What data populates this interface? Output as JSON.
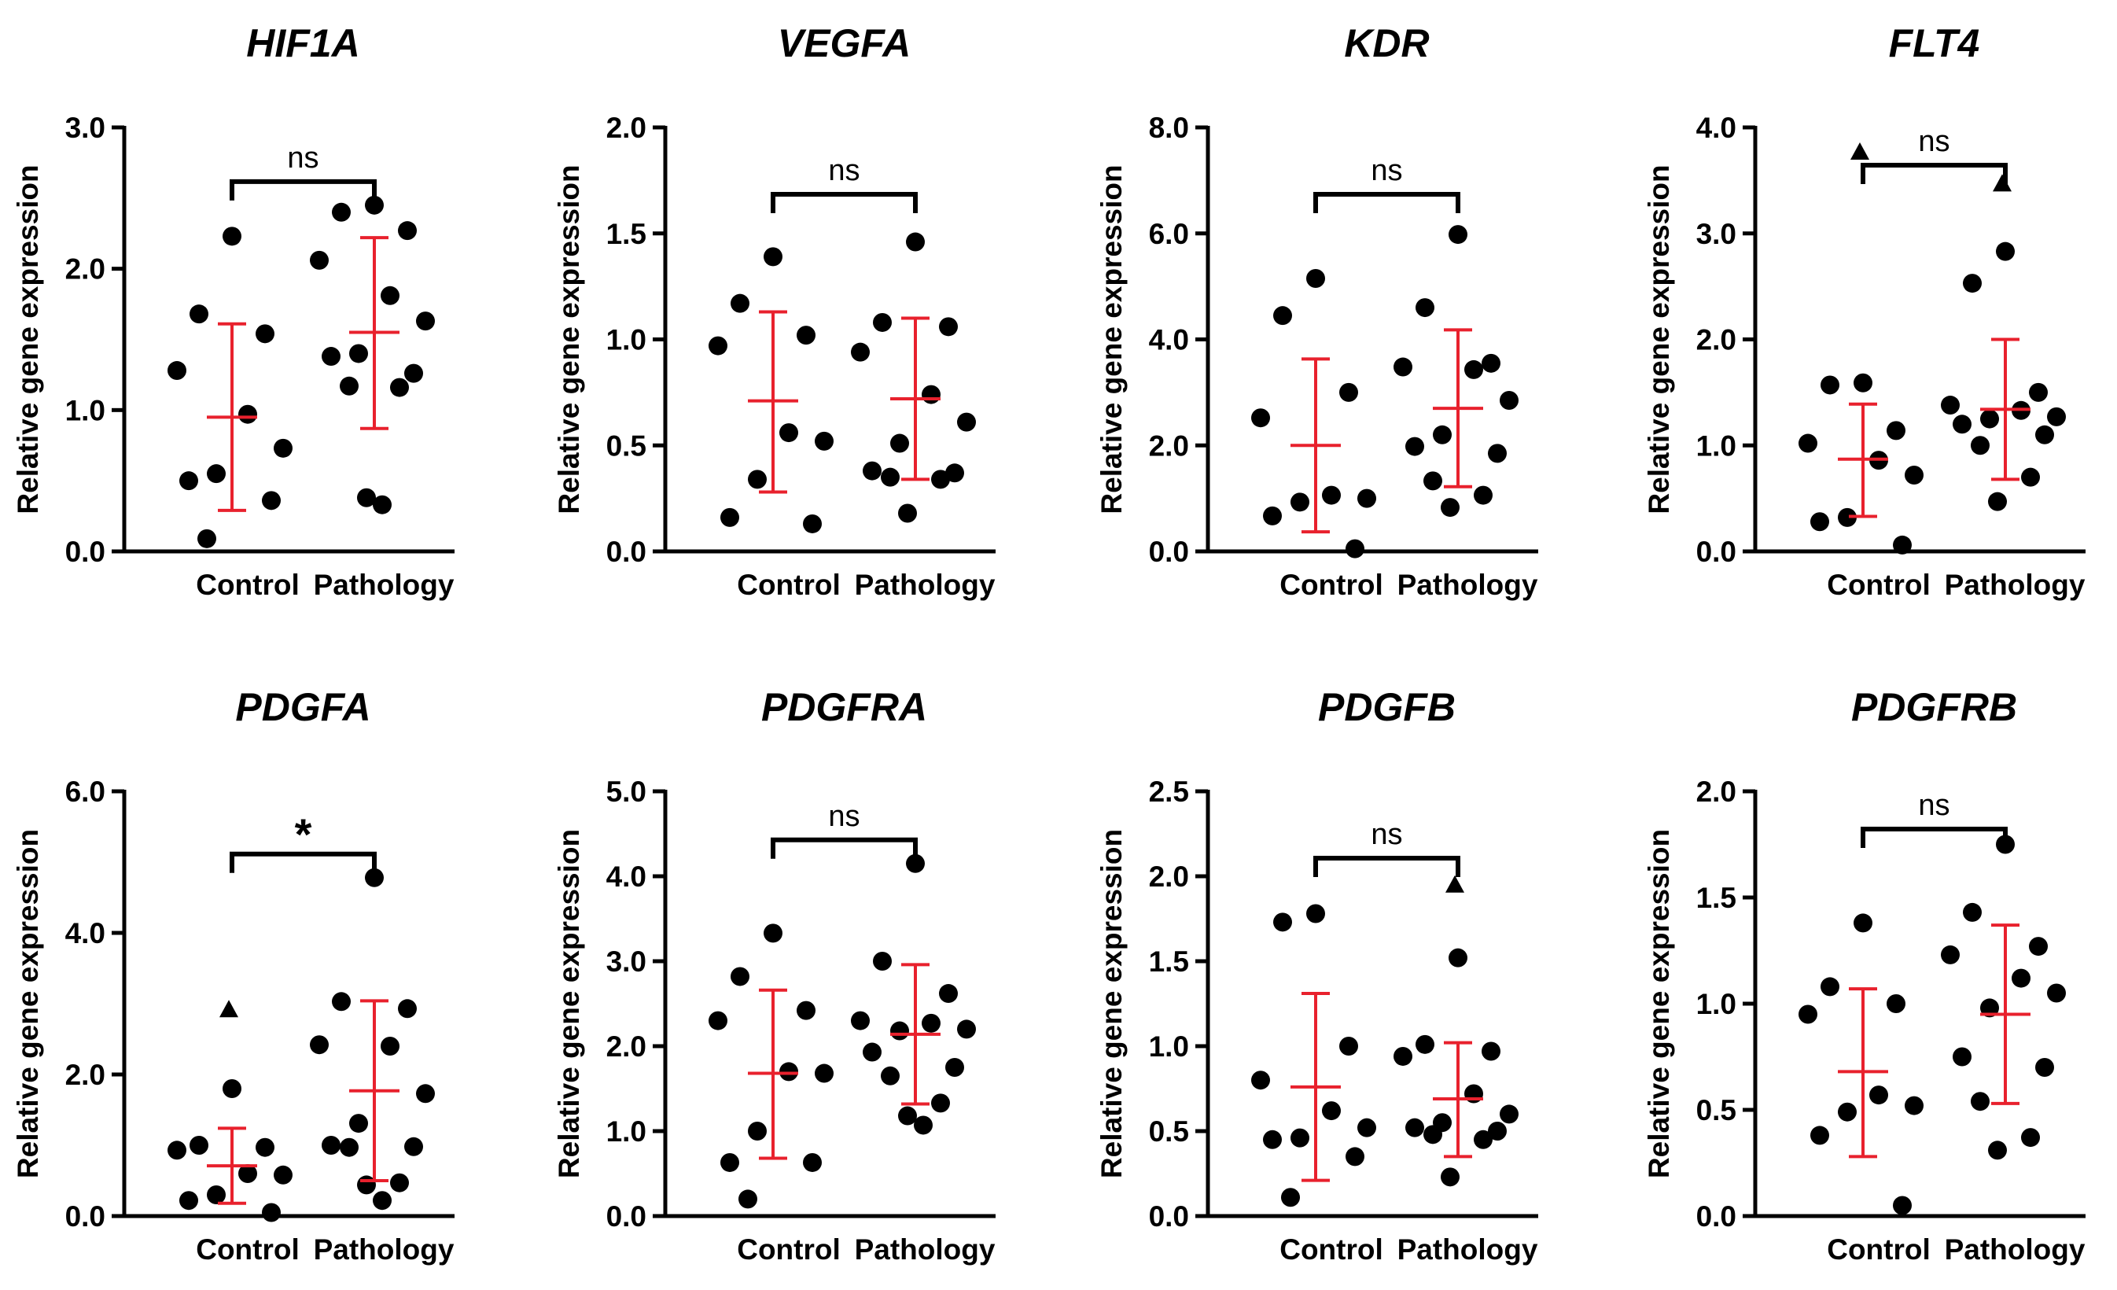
{
  "chart_data": [
    {
      "type": "scatter",
      "title": "HIF1A",
      "ylabel": "Relative gene expression",
      "categories": [
        "Control",
        "Pathology"
      ],
      "ylim": [
        0,
        3.0
      ],
      "yticks": [
        "0.0",
        "1.0",
        "2.0",
        "3.0"
      ],
      "significance": "ns",
      "series": [
        {
          "name": "Control",
          "mean": 0.95,
          "sd_low": 0.29,
          "sd_high": 1.61,
          "values": [
            2.23,
            1.68,
            1.54,
            1.28,
            0.97,
            0.73,
            0.55,
            0.5,
            0.36,
            0.09
          ]
        },
        {
          "name": "Pathology",
          "mean": 1.55,
          "sd_low": 0.87,
          "sd_high": 2.22,
          "values": [
            2.45,
            2.4,
            2.27,
            2.06,
            1.81,
            1.63,
            1.4,
            1.38,
            1.26,
            1.17,
            1.16,
            0.38,
            0.33
          ]
        }
      ],
      "outliers": []
    },
    {
      "type": "scatter",
      "title": "VEGFA",
      "ylabel": "Relative gene expression",
      "categories": [
        "Control",
        "Pathology"
      ],
      "ylim": [
        0,
        2.0
      ],
      "yticks": [
        "0.0",
        "0.5",
        "1.0",
        "1.5",
        "2.0"
      ],
      "significance": "ns",
      "series": [
        {
          "name": "Control",
          "mean": 0.71,
          "sd_low": 0.28,
          "sd_high": 1.13,
          "values": [
            1.39,
            1.17,
            1.02,
            0.97,
            0.56,
            0.52,
            0.34,
            0.16,
            0.13
          ]
        },
        {
          "name": "Pathology",
          "mean": 0.72,
          "sd_low": 0.34,
          "sd_high": 1.1,
          "values": [
            1.46,
            1.08,
            1.06,
            0.94,
            0.74,
            0.61,
            0.51,
            0.38,
            0.37,
            0.35,
            0.34,
            0.18
          ]
        }
      ],
      "outliers": []
    },
    {
      "type": "scatter",
      "title": "KDR",
      "ylabel": "Relative gene expression",
      "categories": [
        "Control",
        "Pathology"
      ],
      "ylim": [
        0,
        8.0
      ],
      "yticks": [
        "0.0",
        "2.0",
        "4.0",
        "6.0",
        "8.0"
      ],
      "significance": "ns",
      "series": [
        {
          "name": "Control",
          "mean": 2.0,
          "sd_low": 0.37,
          "sd_high": 3.63,
          "values": [
            5.15,
            4.45,
            3.0,
            2.52,
            1.06,
            1.0,
            0.93,
            0.67,
            0.05
          ]
        },
        {
          "name": "Pathology",
          "mean": 2.7,
          "sd_low": 1.22,
          "sd_high": 4.18,
          "values": [
            5.98,
            4.6,
            3.55,
            3.48,
            3.43,
            2.85,
            2.2,
            1.98,
            1.85,
            1.33,
            1.06,
            0.83
          ]
        }
      ],
      "outliers": []
    },
    {
      "type": "scatter",
      "title": "FLT4",
      "ylabel": "Relative gene expression",
      "categories": [
        "Control",
        "Pathology"
      ],
      "ylim": [
        0,
        4.0
      ],
      "yticks": [
        "0.0",
        "1.0",
        "2.0",
        "3.0",
        "4.0"
      ],
      "significance": "ns",
      "series": [
        {
          "name": "Control",
          "mean": 0.87,
          "sd_low": 0.33,
          "sd_high": 1.39,
          "values": [
            1.59,
            1.57,
            1.14,
            1.02,
            0.86,
            0.72,
            0.32,
            0.28,
            0.06
          ]
        },
        {
          "name": "Pathology",
          "mean": 1.34,
          "sd_low": 0.68,
          "sd_high": 2.0,
          "values": [
            2.83,
            2.53,
            1.5,
            1.38,
            1.33,
            1.27,
            1.25,
            1.2,
            1.1,
            1.0,
            0.7,
            0.47
          ]
        }
      ],
      "outliers": [
        {
          "group": "Control",
          "value": 3.77
        },
        {
          "group": "Pathology",
          "value": 3.47
        }
      ]
    },
    {
      "type": "scatter",
      "title": "PDGFA",
      "ylabel": "Relative gene expression",
      "categories": [
        "Control",
        "Pathology"
      ],
      "ylim": [
        0,
        6.0
      ],
      "yticks": [
        "0.0",
        "2.0",
        "4.0",
        "6.0"
      ],
      "significance": "*",
      "series": [
        {
          "name": "Control",
          "mean": 0.71,
          "sd_low": 0.18,
          "sd_high": 1.24,
          "values": [
            1.8,
            1.0,
            0.97,
            0.93,
            0.6,
            0.58,
            0.3,
            0.22,
            0.05
          ]
        },
        {
          "name": "Pathology",
          "mean": 1.77,
          "sd_low": 0.5,
          "sd_high": 3.04,
          "values": [
            4.78,
            3.03,
            2.93,
            2.42,
            2.4,
            1.73,
            1.31,
            1.0,
            0.98,
            0.97,
            0.47,
            0.44,
            0.22
          ]
        }
      ],
      "outliers": [
        {
          "group": "Control",
          "value": 2.92
        }
      ]
    },
    {
      "type": "scatter",
      "title": "PDGFRA",
      "ylabel": "Relative gene expression",
      "categories": [
        "Control",
        "Pathology"
      ],
      "ylim": [
        0,
        5.0
      ],
      "yticks": [
        "0.0",
        "1.0",
        "2.0",
        "3.0",
        "4.0",
        "5.0"
      ],
      "significance": "ns",
      "series": [
        {
          "name": "Control",
          "mean": 1.68,
          "sd_low": 0.68,
          "sd_high": 2.66,
          "values": [
            3.33,
            2.82,
            2.42,
            2.3,
            1.7,
            1.68,
            1.0,
            0.63,
            0.63,
            0.2
          ]
        },
        {
          "name": "Pathology",
          "mean": 2.14,
          "sd_low": 1.32,
          "sd_high": 2.96,
          "values": [
            4.15,
            3.0,
            2.62,
            2.3,
            2.27,
            2.2,
            2.18,
            1.93,
            1.75,
            1.65,
            1.33,
            1.18,
            1.07
          ]
        }
      ],
      "outliers": []
    },
    {
      "type": "scatter",
      "title": "PDGFB",
      "ylabel": "Relative gene expression",
      "categories": [
        "Control",
        "Pathology"
      ],
      "ylim": [
        0,
        2.5
      ],
      "yticks": [
        "0.0",
        "0.5",
        "1.0",
        "1.5",
        "2.0",
        "2.5"
      ],
      "significance": "ns",
      "series": [
        {
          "name": "Control",
          "mean": 0.76,
          "sd_low": 0.21,
          "sd_high": 1.31,
          "values": [
            1.78,
            1.73,
            1.0,
            0.8,
            0.62,
            0.52,
            0.46,
            0.45,
            0.35,
            0.11
          ]
        },
        {
          "name": "Pathology",
          "mean": 0.69,
          "sd_low": 0.35,
          "sd_high": 1.02,
          "values": [
            1.52,
            1.01,
            0.97,
            0.94,
            0.72,
            0.6,
            0.55,
            0.52,
            0.5,
            0.48,
            0.45,
            0.23
          ]
        }
      ],
      "outliers": [
        {
          "group": "Pathology",
          "value": 1.95
        }
      ]
    },
    {
      "type": "scatter",
      "title": "PDGFRB",
      "ylabel": "Relative gene expression",
      "categories": [
        "Control",
        "Pathology"
      ],
      "ylim": [
        0,
        2.0
      ],
      "yticks": [
        "0.0",
        "0.5",
        "1.0",
        "1.5",
        "2.0"
      ],
      "significance": "ns",
      "series": [
        {
          "name": "Control",
          "mean": 0.68,
          "sd_low": 0.28,
          "sd_high": 1.07,
          "values": [
            1.38,
            1.08,
            1.0,
            0.95,
            0.57,
            0.52,
            0.49,
            0.38,
            0.05
          ]
        },
        {
          "name": "Pathology",
          "mean": 0.95,
          "sd_low": 0.53,
          "sd_high": 1.37,
          "values": [
            1.75,
            1.43,
            1.27,
            1.23,
            1.12,
            1.05,
            0.98,
            0.75,
            0.7,
            0.54,
            0.37,
            0.31
          ]
        }
      ],
      "outliers": []
    }
  ],
  "colors": {
    "points": "#000000",
    "axes": "#000000",
    "error_bars": "#e8212d",
    "background": "#ffffff"
  }
}
